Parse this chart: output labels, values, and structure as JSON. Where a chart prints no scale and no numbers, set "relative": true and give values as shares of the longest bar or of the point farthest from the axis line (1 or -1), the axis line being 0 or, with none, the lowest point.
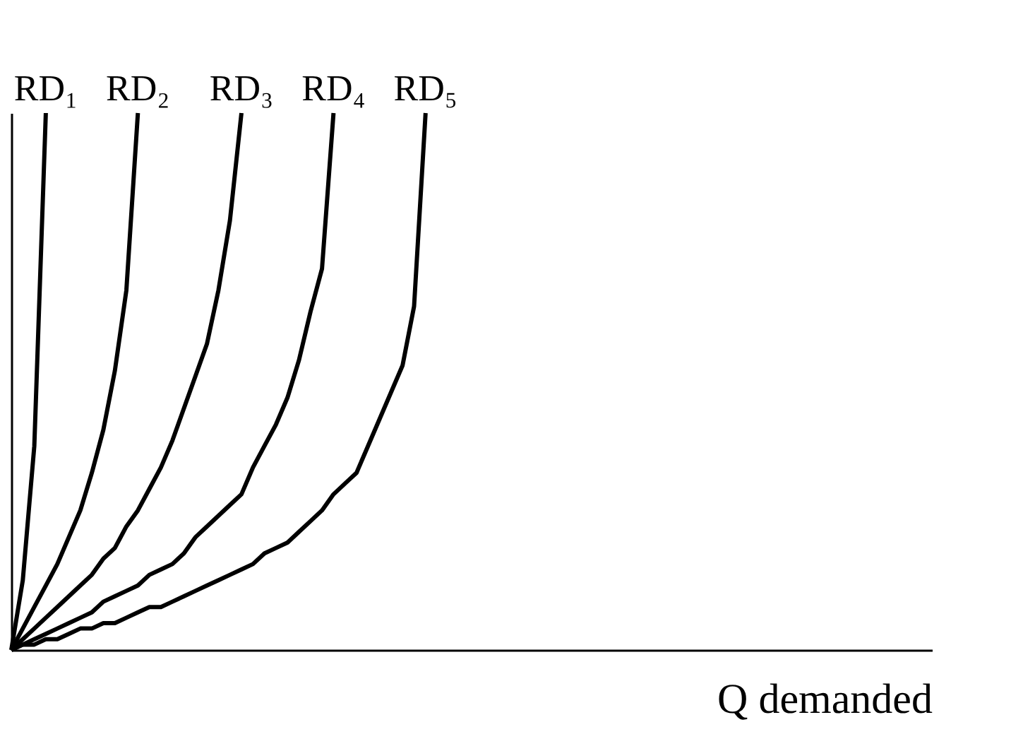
{
  "chart_data": {
    "type": "line",
    "relative": true,
    "xlabel": "Q demanded",
    "tick_labels": false,
    "grid": false,
    "legend": false,
    "marker": "none",
    "line_style": "solid",
    "categories": [
      null,
      null,
      null,
      null,
      null,
      null,
      null,
      null,
      null,
      null,
      null,
      null,
      null,
      null,
      null,
      null,
      null,
      null,
      null,
      null,
      null,
      null,
      null,
      null,
      null,
      null,
      null,
      null,
      null,
      null,
      null,
      null,
      null,
      null,
      null,
      null,
      null,
      null,
      null,
      null,
      null,
      null,
      null,
      null,
      null,
      null,
      null,
      null,
      null,
      null,
      null,
      null,
      null,
      null,
      null,
      null,
      null,
      null,
      null,
      null,
      null,
      null,
      null,
      null,
      null,
      null,
      null,
      null,
      null,
      null,
      null,
      null,
      null,
      null,
      null,
      null,
      null,
      null,
      null,
      null,
      null
    ],
    "series": [
      {
        "name": "RD₁",
        "color": "#000000",
        "values": [
          0,
          0.13,
          0.38,
          1,
          null,
          null,
          null,
          null,
          null,
          null,
          null,
          null,
          null,
          null,
          null,
          null,
          null,
          null,
          null,
          null,
          null,
          null,
          null,
          null,
          null,
          null,
          null,
          null,
          null,
          null,
          null,
          null,
          null,
          null,
          null,
          null,
          null,
          null,
          null,
          null,
          null,
          null,
          null,
          null,
          null,
          null,
          null,
          null,
          null,
          null,
          null,
          null,
          null,
          null,
          null,
          null,
          null,
          null,
          null,
          null,
          null,
          null,
          null,
          null,
          null,
          null,
          null,
          null,
          null,
          null,
          null,
          null,
          null,
          null,
          null,
          null,
          null,
          null,
          null,
          null,
          null
        ]
      },
      {
        "name": "RD₂",
        "color": "#000000",
        "values": [
          0,
          0.04,
          0.08,
          0.12,
          0.16,
          0.21,
          0.26,
          0.33,
          0.41,
          0.52,
          0.67,
          1,
          null,
          null,
          null,
          null,
          null,
          null,
          null,
          null,
          null,
          null,
          null,
          null,
          null,
          null,
          null,
          null,
          null,
          null,
          null,
          null,
          null,
          null,
          null,
          null,
          null,
          null,
          null,
          null,
          null,
          null,
          null,
          null,
          null,
          null,
          null,
          null,
          null,
          null,
          null,
          null,
          null,
          null,
          null,
          null,
          null,
          null,
          null,
          null,
          null,
          null,
          null,
          null,
          null,
          null,
          null,
          null,
          null,
          null,
          null,
          null,
          null,
          null,
          null,
          null,
          null,
          null,
          null,
          null,
          null
        ]
      },
      {
        "name": "RD₃",
        "color": "#000000",
        "values": [
          0,
          0.02,
          0.04,
          0.06,
          0.08,
          0.1,
          0.12,
          0.14,
          0.17,
          0.19,
          0.23,
          0.26,
          0.3,
          0.34,
          0.39,
          0.45,
          0.51,
          0.57,
          0.67,
          0.8,
          1,
          null,
          null,
          null,
          null,
          null,
          null,
          null,
          null,
          null,
          null,
          null,
          null,
          null,
          null,
          null,
          null,
          null,
          null,
          null,
          null,
          null,
          null,
          null,
          null,
          null,
          null,
          null,
          null,
          null,
          null,
          null,
          null,
          null,
          null,
          null,
          null,
          null,
          null,
          null,
          null,
          null,
          null,
          null,
          null,
          null,
          null,
          null,
          null,
          null,
          null,
          null,
          null,
          null,
          null,
          null,
          null,
          null,
          null,
          null,
          null
        ]
      },
      {
        "name": "RD₄",
        "color": "#000000",
        "values": [
          0,
          0.01,
          0.02,
          0.03,
          0.04,
          0.05,
          0.06,
          0.07,
          0.09,
          0.1,
          0.11,
          0.12,
          0.14,
          0.15,
          0.16,
          0.18,
          0.21,
          0.23,
          0.25,
          0.27,
          0.29,
          0.34,
          0.38,
          0.42,
          0.47,
          0.54,
          0.63,
          0.71,
          1,
          null,
          null,
          null,
          null,
          null,
          null,
          null,
          null,
          null,
          null,
          null,
          null,
          null,
          null,
          null,
          null,
          null,
          null,
          null,
          null,
          null,
          null,
          null,
          null,
          null,
          null,
          null,
          null,
          null,
          null,
          null,
          null,
          null,
          null,
          null,
          null,
          null,
          null,
          null,
          null,
          null,
          null,
          null,
          null,
          null,
          null,
          null,
          null,
          null,
          null,
          null,
          null
        ]
      },
      {
        "name": "RD₅",
        "color": "#000000",
        "values": [
          0,
          0.01,
          0.01,
          0.02,
          0.02,
          0.03,
          0.04,
          0.04,
          0.05,
          0.05,
          0.06,
          0.07,
          0.08,
          0.08,
          0.09,
          0.1,
          0.11,
          0.12,
          0.13,
          0.14,
          0.15,
          0.16,
          0.18,
          0.19,
          0.2,
          0.22,
          0.24,
          0.26,
          0.29,
          0.31,
          0.33,
          0.38,
          0.43,
          0.48,
          0.53,
          0.64,
          1,
          null,
          null,
          null,
          null,
          null,
          null,
          null,
          null,
          null,
          null,
          null,
          null,
          null,
          null,
          null,
          null,
          null,
          null,
          null,
          null,
          null,
          null,
          null,
          null,
          null,
          null,
          null,
          null,
          null,
          null,
          null,
          null,
          null,
          null,
          null,
          null,
          null,
          null,
          null,
          null,
          null,
          null,
          null,
          null
        ]
      }
    ]
  }
}
